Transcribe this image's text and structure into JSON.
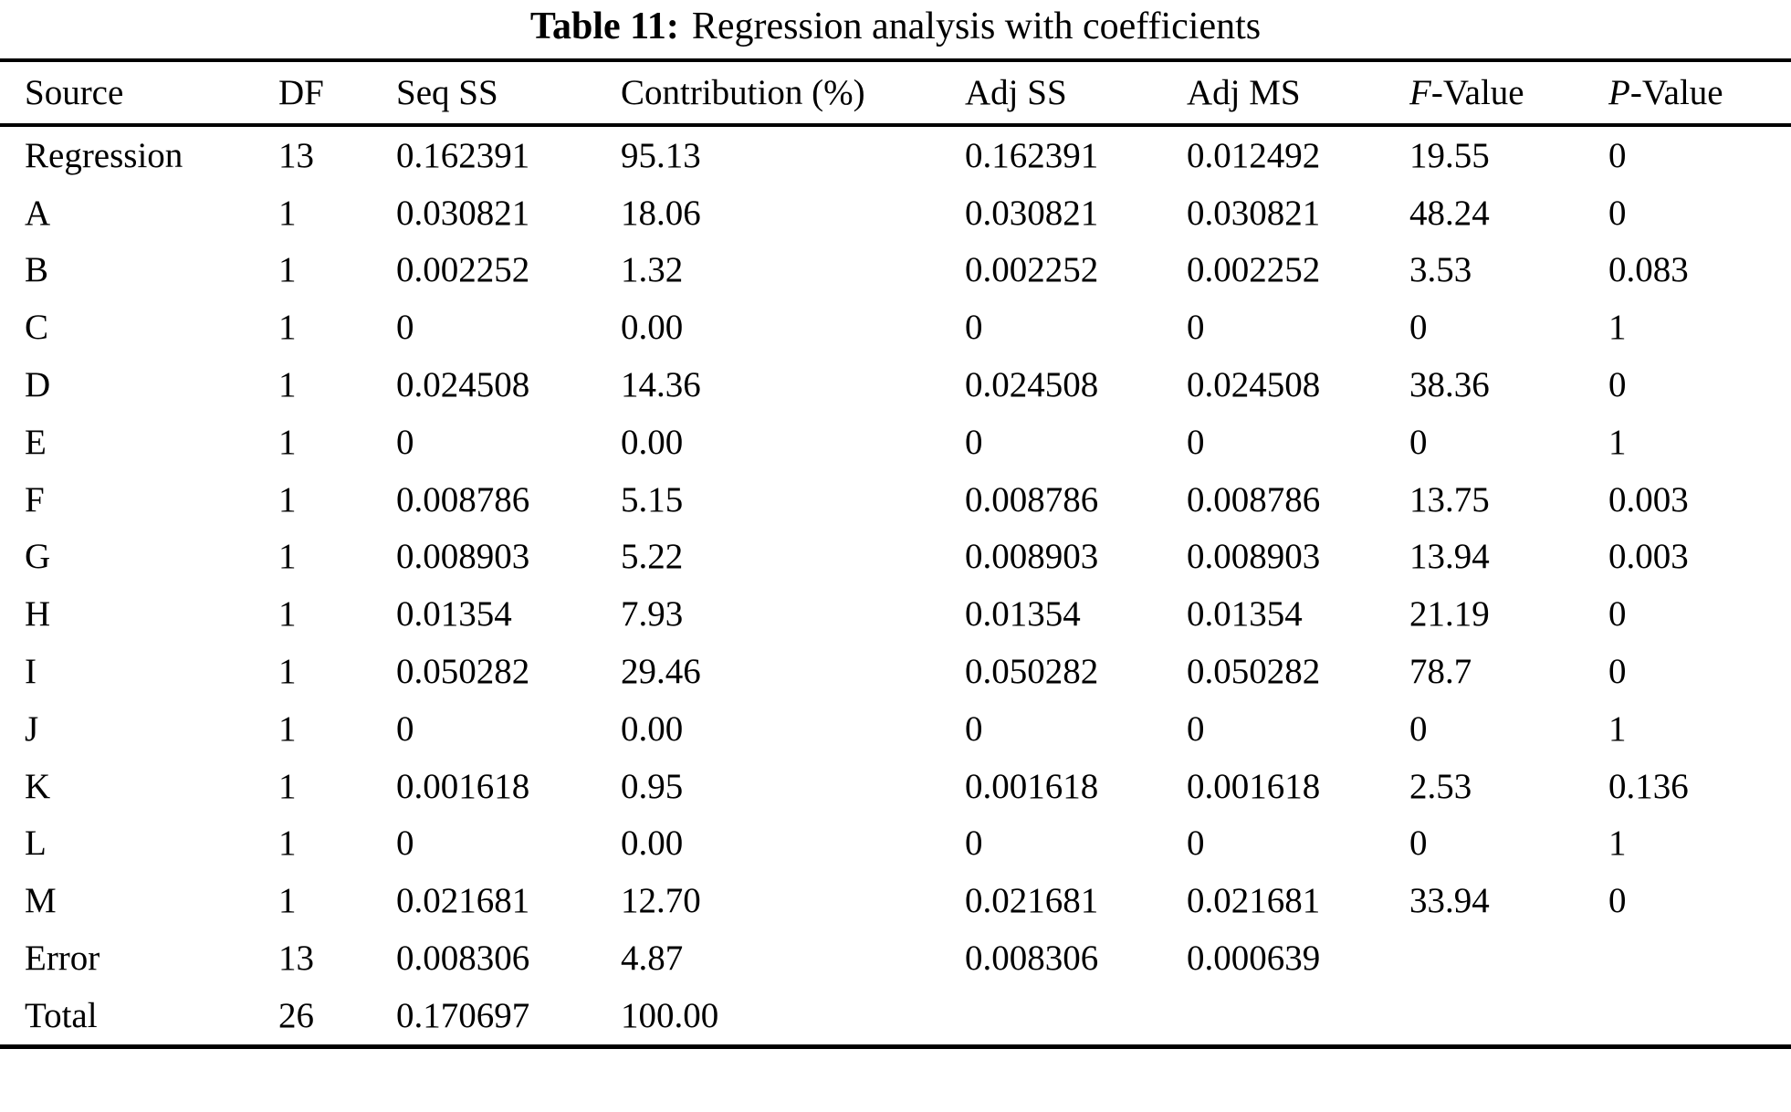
{
  "caption": {
    "label": "Table 11:",
    "text": "Regression analysis with coefficients"
  },
  "table": {
    "columns": [
      {
        "label": "Source"
      },
      {
        "label": "DF"
      },
      {
        "label": "Seq SS"
      },
      {
        "label": "Contribution (%)"
      },
      {
        "label": "Adj SS"
      },
      {
        "label": "Adj MS"
      },
      {
        "label": "F-Value",
        "italic_first_letter": true
      },
      {
        "label": "P-Value",
        "italic_first_letter": true
      }
    ],
    "rows": [
      [
        "Regression",
        "13",
        "0.162391",
        "95.13",
        "0.162391",
        "0.012492",
        "19.55",
        "0"
      ],
      [
        "A",
        "1",
        "0.030821",
        "18.06",
        "0.030821",
        "0.030821",
        "48.24",
        "0"
      ],
      [
        "B",
        "1",
        "0.002252",
        "1.32",
        "0.002252",
        "0.002252",
        "3.53",
        "0.083"
      ],
      [
        "C",
        "1",
        "0",
        "0.00",
        "0",
        "0",
        "0",
        "1"
      ],
      [
        "D",
        "1",
        "0.024508",
        "14.36",
        "0.024508",
        "0.024508",
        "38.36",
        "0"
      ],
      [
        "E",
        "1",
        "0",
        "0.00",
        "0",
        "0",
        "0",
        "1"
      ],
      [
        "F",
        "1",
        "0.008786",
        "5.15",
        "0.008786",
        "0.008786",
        "13.75",
        "0.003"
      ],
      [
        "G",
        "1",
        "0.008903",
        "5.22",
        "0.008903",
        "0.008903",
        "13.94",
        "0.003"
      ],
      [
        "H",
        "1",
        "0.01354",
        "7.93",
        "0.01354",
        "0.01354",
        "21.19",
        "0"
      ],
      [
        "I",
        "1",
        "0.050282",
        "29.46",
        "0.050282",
        "0.050282",
        "78.7",
        "0"
      ],
      [
        "J",
        "1",
        "0",
        "0.00",
        "0",
        "0",
        "0",
        "1"
      ],
      [
        "K",
        "1",
        "0.001618",
        "0.95",
        "0.001618",
        "0.001618",
        "2.53",
        "0.136"
      ],
      [
        "L",
        "1",
        "0",
        "0.00",
        "0",
        "0",
        "0",
        "1"
      ],
      [
        "M",
        "1",
        "0.021681",
        "12.70",
        "0.021681",
        "0.021681",
        "33.94",
        "0"
      ],
      [
        "Error",
        "13",
        "0.008306",
        "4.87",
        "0.008306",
        "0.000639",
        "",
        ""
      ],
      [
        "Total",
        "26",
        "0.170697",
        "100.00",
        "",
        "",
        "",
        ""
      ]
    ]
  },
  "colors": {
    "text": "#000000",
    "background": "#ffffff",
    "rule": "#000000"
  }
}
